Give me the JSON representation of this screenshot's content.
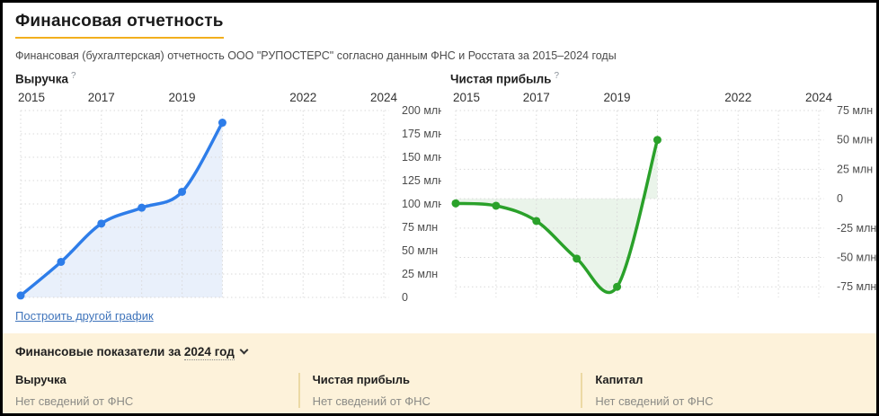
{
  "page": {
    "title": "Финансовая отчетность",
    "subtitle": "Финансовая (бухгалтерская) отчетность ООО \"РУПОСТЕРС\" согласно данным ФНС и Росстата за 2015–2024 годы"
  },
  "links": {
    "build_other_chart": "Построить другой график"
  },
  "panel": {
    "title_prefix": "Финансовые показатели за",
    "year_value": "2024 год",
    "columns": [
      {
        "label": "Выручка",
        "value": "Нет сведений от ФНС"
      },
      {
        "label": "Чистая прибыль",
        "value": "Нет сведений от ФНС"
      },
      {
        "label": "Капитал",
        "value": "Нет сведений от ФНС"
      }
    ],
    "bg_color": "#fdf2da",
    "divider_color": "#ecd9a4"
  },
  "colors": {
    "accent_underline": "#f2af1d",
    "link_blue": "#3f74bb",
    "grid": "#d9d9d9"
  },
  "chart_data": [
    {
      "type": "line",
      "title": "Выручка",
      "help_badge": "?",
      "x": [
        2015,
        2016,
        2017,
        2018,
        2019,
        2020
      ],
      "values": [
        2,
        38,
        79,
        96,
        113,
        187
      ],
      "unit": "млн",
      "x_tick_years": [
        2015,
        2017,
        2019,
        2022,
        2024
      ],
      "x_tick_labels": [
        "2015",
        "2017",
        "2019",
        "2022",
        "2024"
      ],
      "x_range": [
        2015,
        2024
      ],
      "y_tick_values": [
        200,
        175,
        150,
        125,
        100,
        75,
        50,
        25,
        0
      ],
      "y_tick_labels": [
        "200 млн",
        "175 млн",
        "150 млн",
        "125 млн",
        "100 млн",
        "75 млн",
        "50 млн",
        "25 млн",
        "0"
      ],
      "ylim": [
        0,
        200
      ],
      "baseline": 0,
      "area": true,
      "grid": true,
      "legend": false,
      "line_color": "#2e7de9",
      "fill_color": "#e9f0fb"
    },
    {
      "type": "line",
      "title": "Чистая прибыль",
      "help_badge": "?",
      "x": [
        2015,
        2016,
        2017,
        2018,
        2019,
        2020
      ],
      "values": [
        -4,
        -6,
        -19,
        -51,
        -75,
        50
      ],
      "unit": "млн",
      "x_tick_years": [
        2015,
        2017,
        2019,
        2022,
        2024
      ],
      "x_tick_labels": [
        "2015",
        "2017",
        "2019",
        "2022",
        "2024"
      ],
      "x_range": [
        2015,
        2024
      ],
      "y_tick_values": [
        75,
        50,
        25,
        0,
        -25,
        -50,
        -75
      ],
      "y_tick_labels": [
        "75 млн",
        "50 млн",
        "25 млн",
        "0",
        "-25 млн",
        "-50 млн",
        "-75 млн"
      ],
      "ylim": [
        -84,
        75
      ],
      "baseline": 0,
      "area": true,
      "grid": true,
      "legend": false,
      "line_color": "#2aa12a",
      "fill_color": "#eaf4ea"
    }
  ]
}
